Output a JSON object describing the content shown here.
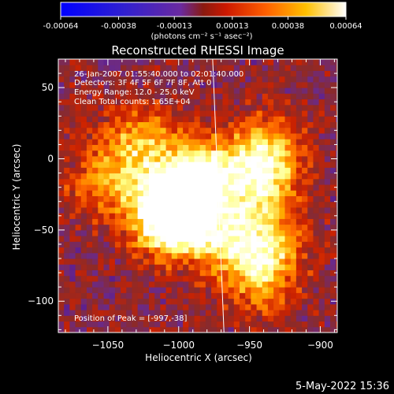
{
  "colorbar": {
    "tick_labels": [
      "-0.00064",
      "-0.00038",
      "-0.00013",
      "0.00013",
      "0.00038",
      "0.00064"
    ],
    "tick_values": [
      -0.00064,
      -0.00038,
      -0.00013,
      0.00013,
      0.00038,
      0.00064
    ],
    "range": [
      -0.00064,
      0.00064
    ],
    "units_label": "(photons cm⁻² s⁻¹ asec⁻²)"
  },
  "chart_data": {
    "type": "heatmap",
    "title": "Reconstructed RHESSI Image",
    "xlabel": "Heliocentric X (arcsec)",
    "ylabel": "Heliocentric Y (arcsec)",
    "xlim": [
      -1085,
      -888
    ],
    "ylim": [
      -122,
      70
    ],
    "x_ticks": [
      -1050,
      -1000,
      -950,
      -900
    ],
    "x_tick_labels": [
      "−1050",
      "−1000",
      "−950",
      "−900"
    ],
    "y_ticks": [
      50,
      0,
      -50,
      -100
    ],
    "y_tick_labels": [
      "50",
      "0",
      "−50",
      "−100"
    ],
    "colormap": [
      "#0000ff",
      "#3a0099",
      "#6a2a8a",
      "#8a2a2a",
      "#cc2200",
      "#ff6a00",
      "#ffb000",
      "#ffff88",
      "#ffffff"
    ],
    "bright_sources": [
      {
        "x": -1003,
        "y": -30,
        "value": 0.00064
      },
      {
        "x": -1010,
        "y": -45,
        "value": 0.00055
      },
      {
        "x": -985,
        "y": -10,
        "value": 0.0004
      },
      {
        "x": -1030,
        "y": 10,
        "value": 0.0003
      },
      {
        "x": -945,
        "y": -20,
        "value": 0.00035
      },
      {
        "x": -940,
        "y": 5,
        "value": 0.0003
      },
      {
        "x": -940,
        "y": -60,
        "value": 0.00028
      },
      {
        "x": -945,
        "y": -85,
        "value": 0.00025
      },
      {
        "x": -1055,
        "y": -20,
        "value": 0.0002
      },
      {
        "x": -975,
        "y": -55,
        "value": 0.0003
      }
    ],
    "limb_line": {
      "x": [
        -976,
        -968
      ],
      "y": [
        70,
        -122
      ],
      "color": "#ffffff"
    },
    "annotations": {
      "time": "26-Jan-2007 01:55:40.000 to 02:01:40.000",
      "detectors": "Detectors: 3F 4F 5F 6F 7F 8F, Att 0",
      "energy": "Energy Range: 12.0 - 25.0 keV",
      "clean": "Clean    Total counts: 1.65E+04",
      "peak": "Position of Peak = [-997,-38]"
    }
  },
  "footer": {
    "date": "5-May-2022 15:36"
  }
}
